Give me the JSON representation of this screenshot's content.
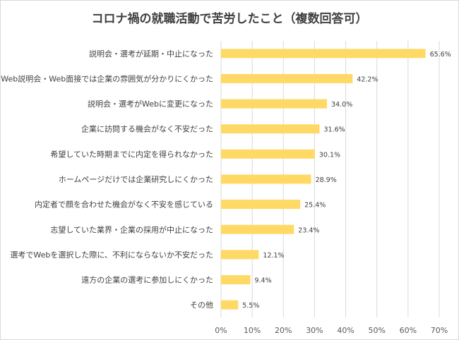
{
  "chart_data": {
    "type": "bar",
    "orientation": "horizontal",
    "title": "コロナ禍の就職活動で苦労したこと（複数回答可）",
    "categories": [
      "説明会・選考が延期・中止になった",
      "Web説明会・Web面接では企業の雰囲気が分かりにくかった",
      "説明会・選考がWebに変更になった",
      "企業に訪問する機会がなく不安だった",
      "希望していた時期までに内定を得られなかった",
      "ホームページだけでは企業研究しにくかった",
      "内定者で顔を合わせた機会がなく不安を感じている",
      "志望していた業界・企業の採用が中止になった",
      "選考でWebを選択した際に、不利にならないか不安だった",
      "遠方の企業の選考に参加しにくかった",
      "その他"
    ],
    "values": [
      65.6,
      42.2,
      34.0,
      31.6,
      30.1,
      28.9,
      25.4,
      23.4,
      12.1,
      9.4,
      5.5
    ],
    "value_labels": [
      "65.6%",
      "42.2%",
      "34.0%",
      "31.6%",
      "30.1%",
      "28.9%",
      "25.4%",
      "23.4%",
      "12.1%",
      "9.4%",
      "5.5%"
    ],
    "xlim": [
      0,
      70
    ],
    "xticks": [
      "0%",
      "10%",
      "20%",
      "30%",
      "40%",
      "50%",
      "60%",
      "70%"
    ],
    "grid": true,
    "bar_color": "#ffd966",
    "grid_color": "#d9d9d9"
  }
}
